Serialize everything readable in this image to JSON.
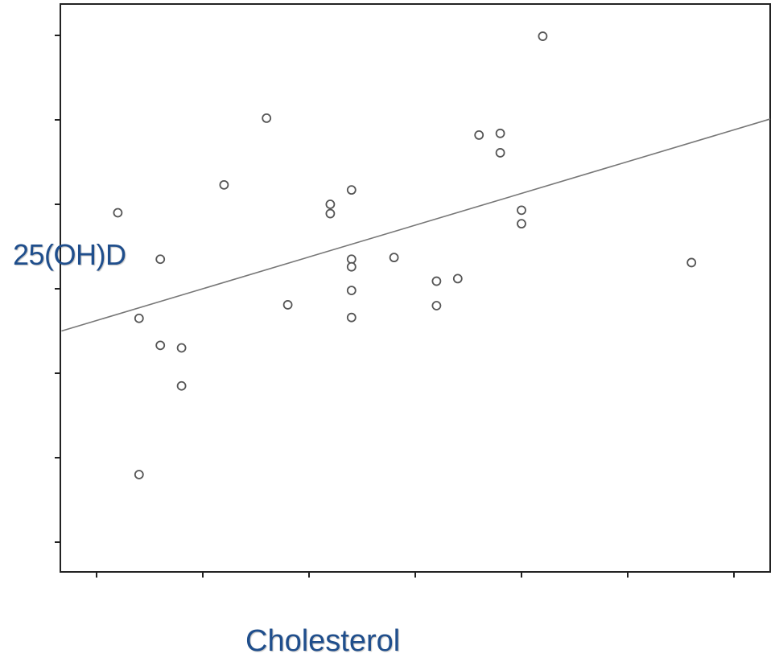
{
  "chart_data": {
    "type": "scatter",
    "title": "",
    "xlabel": "Cholesterol",
    "ylabel": "25(OH)D",
    "xlim": [
      0,
      6.75
    ],
    "ylim": [
      0,
      6.75
    ],
    "xticks": [
      0,
      1,
      2,
      3,
      4,
      5,
      6
    ],
    "yticks": [
      0,
      1,
      2,
      3,
      4,
      5,
      6
    ],
    "tick_labels_shown": false,
    "grid": false,
    "colors": {
      "points": "#555555",
      "line": "#777777",
      "axis": "#222222",
      "labels": "#1f4e8c"
    },
    "points": [
      {
        "x": 0.2,
        "y": 3.9
      },
      {
        "x": 0.4,
        "y": 2.65
      },
      {
        "x": 0.4,
        "y": 0.8
      },
      {
        "x": 0.6,
        "y": 3.35
      },
      {
        "x": 0.6,
        "y": 2.33
      },
      {
        "x": 0.8,
        "y": 2.3
      },
      {
        "x": 0.8,
        "y": 1.85
      },
      {
        "x": 1.2,
        "y": 4.23
      },
      {
        "x": 1.6,
        "y": 5.02
      },
      {
        "x": 1.8,
        "y": 2.81
      },
      {
        "x": 2.2,
        "y": 4.0
      },
      {
        "x": 2.2,
        "y": 3.89
      },
      {
        "x": 2.4,
        "y": 4.17
      },
      {
        "x": 2.4,
        "y": 3.35
      },
      {
        "x": 2.4,
        "y": 3.26
      },
      {
        "x": 2.4,
        "y": 2.98
      },
      {
        "x": 2.4,
        "y": 2.66
      },
      {
        "x": 2.8,
        "y": 3.37
      },
      {
        "x": 3.2,
        "y": 3.09
      },
      {
        "x": 3.2,
        "y": 2.8
      },
      {
        "x": 3.4,
        "y": 3.12
      },
      {
        "x": 3.6,
        "y": 4.82
      },
      {
        "x": 3.8,
        "y": 4.84
      },
      {
        "x": 3.8,
        "y": 4.61
      },
      {
        "x": 4.0,
        "y": 3.93
      },
      {
        "x": 4.0,
        "y": 3.77
      },
      {
        "x": 4.2,
        "y": 5.99
      },
      {
        "x": 5.6,
        "y": 3.31
      }
    ],
    "fit_line": {
      "x": [
        -0.33,
        6.75
      ],
      "y": [
        2.5,
        5.01
      ]
    }
  }
}
